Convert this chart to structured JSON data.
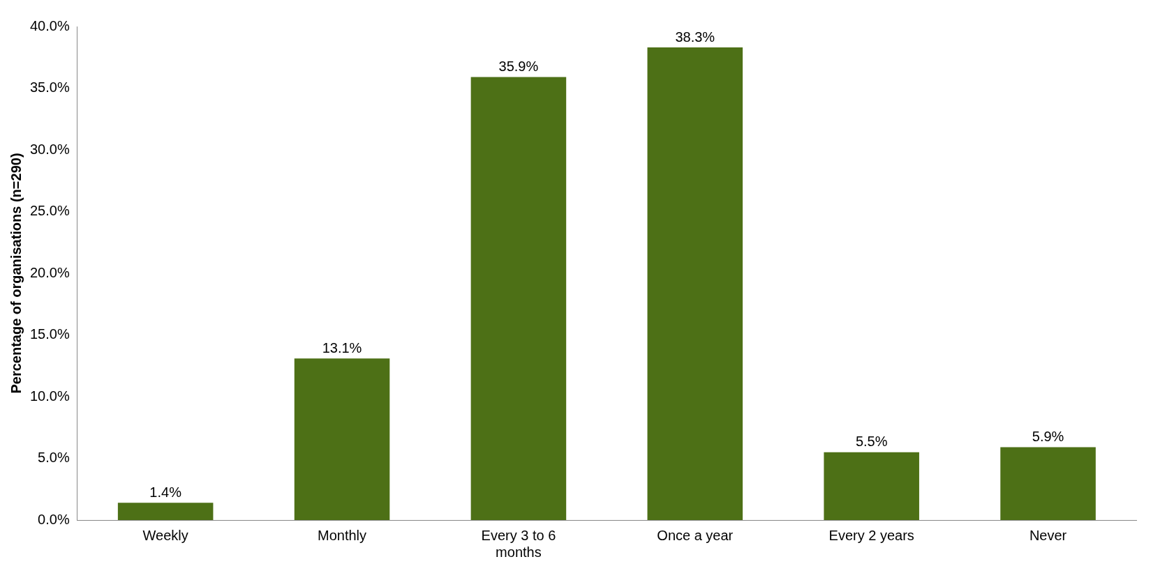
{
  "chart_data": {
    "type": "bar",
    "ylabel": "Percentage of organisations (n=290)",
    "categories": [
      "Weekly",
      "Monthly",
      "Every 3 to 6 months",
      "Once a year",
      "Every 2 years",
      "Never"
    ],
    "values": [
      1.4,
      13.1,
      35.9,
      38.3,
      5.5,
      5.9
    ],
    "value_labels": [
      "1.4%",
      "13.1%",
      "35.9%",
      "38.3%",
      "5.5%",
      "5.9%"
    ],
    "color": "#4d7016",
    "ylim": [
      0,
      40
    ],
    "yticks": [
      {
        "value": 0,
        "label": "0.0%"
      },
      {
        "value": 5,
        "label": "5.0%"
      },
      {
        "value": 10,
        "label": "10.0%"
      },
      {
        "value": 15,
        "label": "15.0%"
      },
      {
        "value": 20,
        "label": "20.0%"
      },
      {
        "value": 25,
        "label": "25.0%"
      },
      {
        "value": 30,
        "label": "30.0%"
      },
      {
        "value": 35,
        "label": "35.0%"
      },
      {
        "value": 40,
        "label": "40.0%"
      }
    ],
    "grid": false,
    "legend": false
  }
}
